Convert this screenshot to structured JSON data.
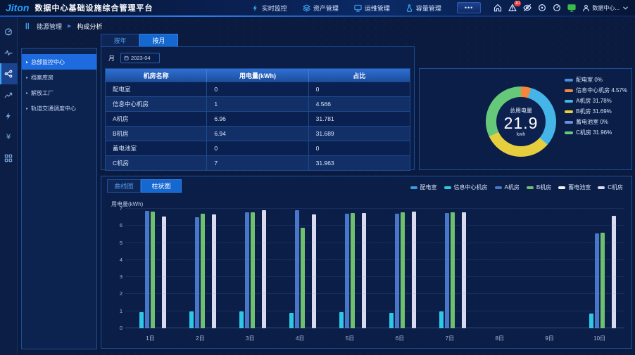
{
  "topbar": {
    "logo": "Jiton",
    "title": "数据中心基础设施综合管理平台",
    "nav_items": [
      {
        "label": "实时监控",
        "icon": "bolt-icon"
      },
      {
        "label": "资产管理",
        "icon": "layers-icon"
      },
      {
        "label": "运维管理",
        "icon": "monitor-icon"
      },
      {
        "label": "容量管理",
        "icon": "capacity-icon"
      },
      {
        "label": "•••",
        "icon": ""
      }
    ],
    "right_icons": [
      "home-icon",
      "alarm-icon",
      "eye-off-icon",
      "record-icon",
      "gauge-icon",
      "screen-icon"
    ],
    "alarm_count": "10",
    "user_label": "数据中心..."
  },
  "breadcrumb": {
    "root": "能源管理",
    "current": "构成分析"
  },
  "rail": {
    "items": [
      "dashboard-icon",
      "pulse-icon",
      "analysis-icon",
      "trend-icon",
      "energy-icon",
      "cost-icon",
      "apps-icon"
    ],
    "selected_index": 2
  },
  "sidebar": {
    "items": [
      {
        "label": "总部监控中心",
        "selected": true
      },
      {
        "label": "档案库房",
        "selected": false
      },
      {
        "label": "解放工厂",
        "selected": false
      },
      {
        "label": "轨道交通调度中心",
        "selected": false
      }
    ]
  },
  "filters": {
    "tab_year": "按年",
    "tab_month": "按月",
    "active_tab": "按月",
    "month_label": "月",
    "month_value": "2023-04"
  },
  "table": {
    "columns": [
      "机房名称",
      "用电量(kWh)",
      "占比"
    ],
    "rows": [
      {
        "name": "配电室",
        "kwh": "0",
        "ratio": "0"
      },
      {
        "name": "信息中心机房",
        "kwh": "1",
        "ratio": "4.566"
      },
      {
        "name": "A机房",
        "kwh": "6.96",
        "ratio": "31.781"
      },
      {
        "name": "B机房",
        "kwh": "6.94",
        "ratio": "31.689"
      },
      {
        "name": "蓄电池室",
        "kwh": "0",
        "ratio": "0"
      },
      {
        "name": "C机房",
        "kwh": "7",
        "ratio": "31.963"
      }
    ]
  },
  "bottom_tabs": {
    "line": "曲线图",
    "bar": "柱状图",
    "active": "柱状图"
  },
  "chart_data": [
    {
      "type": "pie",
      "title": "总用电量",
      "center_value": "21.9",
      "unit": "kwh",
      "labels": [
        "配电室",
        "信息中心机房",
        "A机房",
        "B机房",
        "蓄电池室",
        "C机房"
      ],
      "values": [
        0,
        4.57,
        31.78,
        31.69,
        0,
        31.96
      ],
      "colors": [
        "#4a90d9",
        "#f5863d",
        "#45b5e8",
        "#e6cf3e",
        "#6c8ede",
        "#66c97a"
      ],
      "legend": [
        "配电室 0%",
        "信息中心机房 4.57%",
        "A机房 31.78%",
        "B机房 31.69%",
        "蓄电池室 0%",
        "C机房 31.96%"
      ],
      "legend_position": "right",
      "donut": true
    },
    {
      "type": "bar",
      "ylabel": "用电量(kWh)",
      "ylim": [
        0,
        7
      ],
      "yticks": [
        0,
        1,
        2,
        3,
        4,
        5,
        6,
        7
      ],
      "categories": [
        "1日",
        "2日",
        "3日",
        "4日",
        "5日",
        "6日",
        "7日",
        "8日",
        "9日",
        "10日"
      ],
      "series": [
        {
          "name": "配电室",
          "color": "#3a9bd5",
          "values": [
            0,
            0,
            0,
            0,
            0,
            0,
            0,
            0,
            0,
            0
          ]
        },
        {
          "name": "信息中心机房",
          "color": "#2ec7e6",
          "values": [
            0.96,
            1.0,
            1.0,
            0.9,
            0.95,
            0.92,
            0.98,
            0,
            0,
            0.86
          ]
        },
        {
          "name": "A机房",
          "color": "#4876c8",
          "values": [
            6.88,
            6.52,
            6.78,
            6.9,
            6.72,
            6.72,
            6.74,
            0,
            0,
            5.55
          ]
        },
        {
          "name": "B机房",
          "color": "#6ec06e",
          "values": [
            6.85,
            6.73,
            6.78,
            5.9,
            6.77,
            6.8,
            6.8,
            0,
            0,
            5.6
          ]
        },
        {
          "name": "蓄电池室",
          "color": "#eef0f8",
          "values": [
            0,
            0,
            0,
            0,
            0,
            0,
            0,
            0,
            0,
            0
          ]
        },
        {
          "name": "C机房",
          "color": "#d9d9ef",
          "values": [
            6.55,
            6.68,
            6.93,
            6.68,
            6.76,
            6.83,
            6.78,
            0,
            0,
            6.58
          ]
        }
      ],
      "legend_position": "top-right",
      "grid": true
    }
  ]
}
